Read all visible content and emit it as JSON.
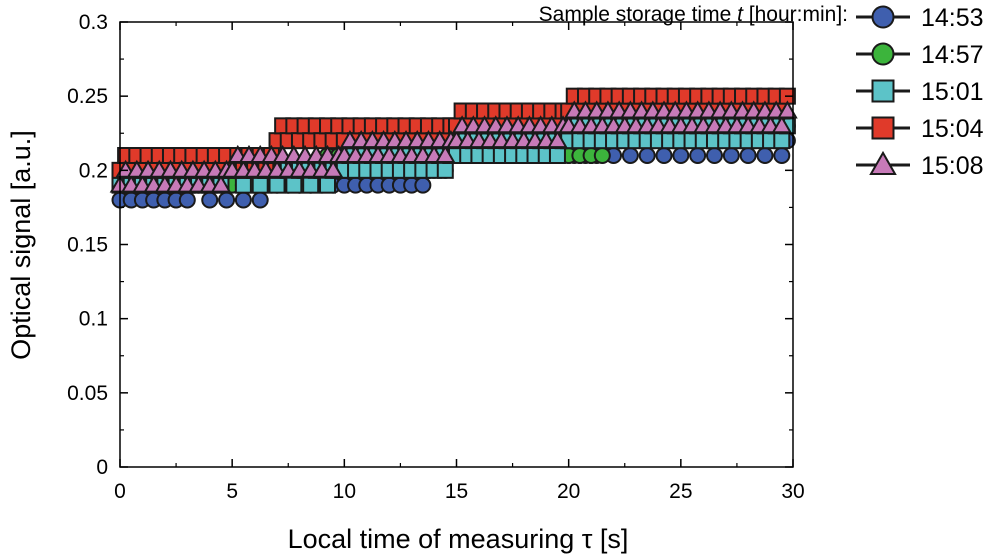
{
  "chart_data": {
    "type": "scatter",
    "title": "",
    "xlabel": "Local time of measuring τ [s]",
    "ylabel": "Optical signal [a.u.]",
    "xlim": [
      0,
      30
    ],
    "ylim": [
      0,
      0.3
    ],
    "xticks": [
      "0",
      "5",
      "10",
      "15",
      "20",
      "25",
      "30"
    ],
    "yticks": [
      "0",
      "0.05",
      "0.1",
      "0.15",
      "0.2",
      "0.25",
      "0.3"
    ],
    "legend": {
      "title_prefix": "Sample storage time ",
      "title_var": "t",
      "title_suffix": " [hour:min]:",
      "placement": "top-right"
    },
    "sampling_interval_s": 0.25,
    "series": [
      {
        "name": "14:53",
        "marker": "circle",
        "color": "#3f5fae",
        "segments": [
          {
            "from": 0,
            "to": 3.5,
            "values": [
              0.18,
              0.19
            ]
          },
          {
            "from": 3.5,
            "to": 7,
            "values": [
              0.19,
              0.18,
              0.19
            ]
          },
          {
            "from": 7,
            "to": 14,
            "values": [
              0.19,
              0.2
            ]
          },
          {
            "from": 14,
            "to": 21.5,
            "values": [
              0.21
            ]
          },
          {
            "from": 21.5,
            "to": 30,
            "values": [
              0.22,
              0.21,
              0.22
            ]
          }
        ]
      },
      {
        "name": "14:57",
        "marker": "circle",
        "color": "#3cb43c",
        "segments": [
          {
            "from": 0,
            "to": 4,
            "values": [
              0.19,
              0.2
            ]
          },
          {
            "from": 4,
            "to": 9,
            "values": [
              0.19,
              0.2
            ]
          },
          {
            "from": 9,
            "to": 15,
            "values": [
              0.2,
              0.21
            ]
          },
          {
            "from": 15,
            "to": 22,
            "values": [
              0.21,
              0.22
            ]
          },
          {
            "from": 22,
            "to": 30,
            "values": [
              0.22,
              0.23
            ]
          }
        ]
      },
      {
        "name": "15:01",
        "marker": "square",
        "color": "#5cc3c8",
        "segments": [
          {
            "from": 0,
            "to": 5,
            "values": [
              0.19,
              0.2
            ]
          },
          {
            "from": 5,
            "to": 10,
            "values": [
              0.2,
              0.19,
              0.2
            ]
          },
          {
            "from": 10,
            "to": 15,
            "values": [
              0.2,
              0.21
            ]
          },
          {
            "from": 15,
            "to": 20,
            "values": [
              0.21,
              0.22
            ]
          },
          {
            "from": 20,
            "to": 30,
            "values": [
              0.22,
              0.23
            ]
          }
        ]
      },
      {
        "name": "15:04",
        "marker": "square",
        "color": "#e03a2a",
        "segments": [
          {
            "from": 0,
            "to": 7,
            "values": [
              0.2,
              0.21
            ]
          },
          {
            "from": 7,
            "to": 10,
            "values": [
              0.22,
              0.23
            ]
          },
          {
            "from": 10,
            "to": 15,
            "values": [
              0.22,
              0.23
            ]
          },
          {
            "from": 15,
            "to": 20,
            "values": [
              0.23,
              0.24
            ]
          },
          {
            "from": 20,
            "to": 30,
            "values": [
              0.24,
              0.25
            ]
          }
        ]
      },
      {
        "name": "15:08",
        "marker": "triangle",
        "color": "#c77ab8",
        "segments": [
          {
            "from": 0,
            "to": 5,
            "values": [
              0.19,
              0.2
            ]
          },
          {
            "from": 5,
            "to": 10,
            "values": [
              0.2,
              0.21
            ]
          },
          {
            "from": 10,
            "to": 15,
            "values": [
              0.21,
              0.22
            ]
          },
          {
            "from": 15,
            "to": 20,
            "values": [
              0.22,
              0.23
            ]
          },
          {
            "from": 20,
            "to": 30,
            "values": [
              0.23,
              0.24
            ]
          }
        ]
      }
    ]
  }
}
